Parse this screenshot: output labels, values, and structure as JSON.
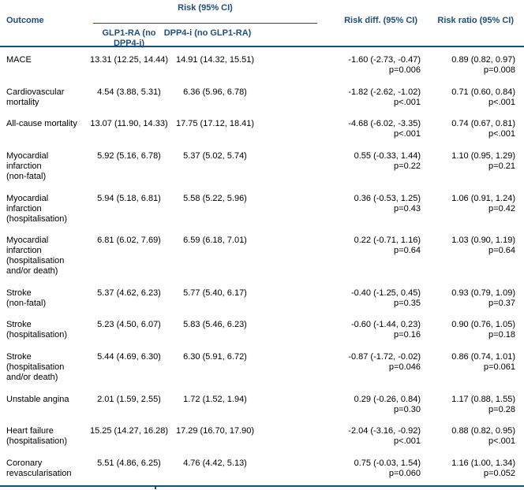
{
  "colors": {
    "header_text": "#1F4E79",
    "rule": "#14527E",
    "body_text": "#000000",
    "background": "#FFFFFF"
  },
  "table": {
    "headers": {
      "outcome": "Outcome",
      "risk_spanner": "Risk (95% CI)",
      "glp1": "GLP1-RA (no DPP4-i)",
      "dpp4": "DPP4-i (no GLP1-RA)",
      "risk_diff": "Risk diff. (95% CI)",
      "risk_ratio": "Risk ratio (95% CI)"
    },
    "rows": [
      {
        "outcome": "MACE",
        "glp1": "13.31 (12.25, 14.44)",
        "dpp4": "14.91 (14.32, 15.51)",
        "diff": "-1.60 (-2.73, -0.47)",
        "diff_p": "p=0.006",
        "ratio": "0.89 (0.82, 0.97)",
        "ratio_p": "p=0.008"
      },
      {
        "outcome": "Cardiovascular\nmortality",
        "glp1": "4.54 (3.88, 5.31)",
        "dpp4": "6.36 (5.96, 6.78)",
        "diff": "-1.82 (-2.62, -1.02)",
        "diff_p": "p<.001",
        "ratio": "0.71 (0.60, 0.84)",
        "ratio_p": "p<.001"
      },
      {
        "outcome": "All-cause mortality",
        "glp1": "13.07 (11.90, 14.33)",
        "dpp4": "17.75 (17.12, 18.41)",
        "diff": "-4.68 (-6.02, -3.35)",
        "diff_p": "p<.001",
        "ratio": "0.74 (0.67, 0.81)",
        "ratio_p": "p<.001"
      },
      {
        "outcome": "Myocardial\ninfarction\n(non-fatal)",
        "glp1": "5.92 (5.16, 6.78)",
        "dpp4": "5.37 (5.02, 5.74)",
        "diff": "0.55 (-0.33, 1.44)",
        "diff_p": "p=0.22",
        "ratio": "1.10 (0.95, 1.29)",
        "ratio_p": "p=0.21"
      },
      {
        "outcome": "Myocardial\ninfarction\n(hospitalisation)",
        "glp1": "5.94 (5.18, 6.81)",
        "dpp4": "5.58 (5.22, 5.96)",
        "diff": "0.36 (-0.53, 1.25)",
        "diff_p": "p=0.43",
        "ratio": "1.06 (0.91, 1.24)",
        "ratio_p": "p=0.42"
      },
      {
        "outcome": "Myocardial\ninfarction\n(hospitalisation\nand/or death)",
        "glp1": "6.81 (6.02, 7.69)",
        "dpp4": "6.59 (6.18, 7.01)",
        "diff": "0.22 (-0.71, 1.16)",
        "diff_p": "p=0.64",
        "ratio": "1.03 (0.90, 1.19)",
        "ratio_p": "p=0.64"
      },
      {
        "outcome": "Stroke\n(non-fatal)",
        "glp1": "5.37 (4.62, 6.23)",
        "dpp4": "5.77 (5.40, 6.17)",
        "diff": "-0.40 (-1.25, 0.45)",
        "diff_p": "p=0.35",
        "ratio": "0.93 (0.79, 1.09)",
        "ratio_p": "p=0.37"
      },
      {
        "outcome": "Stroke\n(hospitalisation)",
        "glp1": "5.23 (4.50, 6.07)",
        "dpp4": "5.83 (5.46, 6.23)",
        "diff": "-0.60 (-1.44, 0.23)",
        "diff_p": "p=0.16",
        "ratio": "0.90 (0.76, 1.05)",
        "ratio_p": "p=0.18"
      },
      {
        "outcome": "Stroke\n(hospitalisation\nand/or death)",
        "glp1": "5.44 (4.69, 6.30)",
        "dpp4": "6.30 (5.91, 6.72)",
        "diff": "-0.87 (-1.72, -0.02)",
        "diff_p": "p=0.046",
        "ratio": "0.86 (0.74, 1.01)",
        "ratio_p": "p=0.061"
      },
      {
        "outcome": "Unstable angina",
        "glp1": "2.01 (1.59, 2.55)",
        "dpp4": "1.72 (1.52, 1.94)",
        "diff": "0.29 (-0.26, 0.84)",
        "diff_p": "p=0.30",
        "ratio": "1.17 (0.88, 1.55)",
        "ratio_p": "p=0.28"
      },
      {
        "outcome": "Heart failure\n(hospitalisation)",
        "glp1": "15.25 (14.27, 16.28)",
        "dpp4": "17.29 (16.70, 17.90)",
        "diff": "-2.04 (-3.16, -0.92)",
        "diff_p": "p<.001",
        "ratio": "0.88 (0.82, 0.95)",
        "ratio_p": "p<.001"
      },
      {
        "outcome": "Coronary\nrevascularisation",
        "glp1": "5.51 (4.86, 6.25)",
        "dpp4": "4.76 (4.42, 5.13)",
        "diff": "0.75 (-0.03, 1.54)",
        "diff_p": "p=0.060",
        "ratio": "1.16 (1.00, 1.34)",
        "ratio_p": "p=0.052"
      }
    ]
  }
}
